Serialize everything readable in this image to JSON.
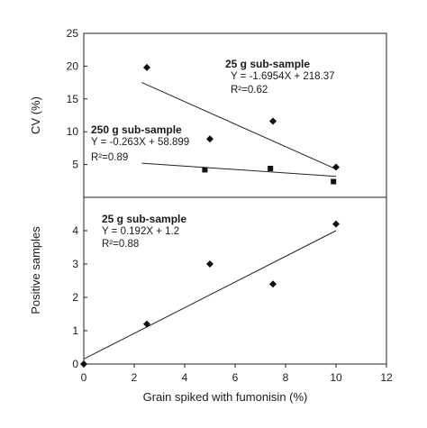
{
  "chart_data": [
    {
      "type": "scatter",
      "ylabel": "CV (%)",
      "xlim": [
        0,
        12
      ],
      "ylim": [
        0,
        25
      ],
      "yticks": [
        5,
        10,
        15,
        20,
        25
      ],
      "grid": false,
      "series": [
        {
          "name": "25 g sub-sample",
          "marker": "diamond",
          "x": [
            2.5,
            5,
            7.5,
            10
          ],
          "y": [
            19.8,
            8.9,
            11.6,
            4.6
          ],
          "trendline": {
            "equation": "Y = -1.6954X  + 218.37",
            "r2": "R²=0.62",
            "x": [
              2.3,
              10
            ],
            "y": [
              17.5,
              4.3
            ]
          }
        },
        {
          "name": "250 g sub-sample",
          "marker": "square",
          "x": [
            4.8,
            7.4,
            9.9
          ],
          "y": [
            4.2,
            4.4,
            2.4
          ],
          "trendline": {
            "equation": "Y = -0.263X  + 58.899",
            "r2": "R²=0.89",
            "x": [
              2.3,
              10
            ],
            "y": [
              5.2,
              3.2
            ]
          }
        }
      ]
    },
    {
      "type": "scatter",
      "xlabel": "Grain spiked with fumonisin (%)",
      "ylabel": "Positive samples",
      "xlim": [
        0,
        12
      ],
      "ylim": [
        0,
        5
      ],
      "xticks": [
        0,
        2,
        4,
        6,
        8,
        10,
        12
      ],
      "yticks": [
        0,
        1,
        2,
        3,
        4
      ],
      "grid": false,
      "series": [
        {
          "name": "25 g sub-sample",
          "marker": "diamond",
          "x": [
            0,
            2.5,
            5,
            7.5,
            10
          ],
          "y": [
            0,
            1.2,
            3.0,
            2.4,
            4.2
          ],
          "trendline": {
            "equation": "Y = 0.192X  + 1.2",
            "r2": "R²=0.88",
            "x": [
              0,
              10
            ],
            "y": [
              0.15,
              4.0
            ]
          }
        }
      ]
    }
  ]
}
